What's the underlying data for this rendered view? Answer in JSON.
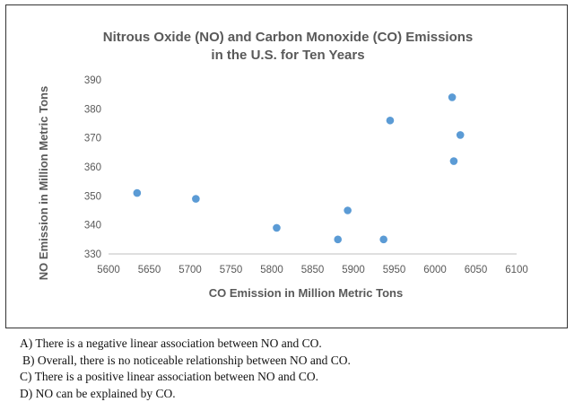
{
  "chart_data": {
    "type": "scatter",
    "title": [
      "Nitrous Oxide (NO) and Carbon Monoxide (CO) Emissions",
      "in the U.S. for Ten Years"
    ],
    "xlabel": "CO Emission in Million Metric Tons",
    "ylabel": "NO Emission in Million Metric Tons",
    "xlim": [
      5600,
      6100
    ],
    "ylim": [
      330,
      390
    ],
    "xticks": [
      "5600",
      "5650",
      "5700",
      "5750",
      "5800",
      "5850",
      "5900",
      "5950",
      "6000",
      "6050",
      "6100"
    ],
    "yticks": [
      "330",
      "340",
      "350",
      "360",
      "370",
      "380",
      "390"
    ],
    "grid": false,
    "point_color": "#5b9bd5",
    "points": [
      {
        "x": 5635,
        "y": 351
      },
      {
        "x": 5707,
        "y": 349
      },
      {
        "x": 5806,
        "y": 339
      },
      {
        "x": 5881,
        "y": 335
      },
      {
        "x": 5893,
        "y": 345
      },
      {
        "x": 5937,
        "y": 335
      },
      {
        "x": 5945,
        "y": 376
      },
      {
        "x": 6021,
        "y": 384
      },
      {
        "x": 6023,
        "y": 362
      },
      {
        "x": 6031,
        "y": 371
      }
    ]
  },
  "choices": [
    "A) There is a negative linear association between NO and CO.",
    "B) Overall, there is no noticeable relationship between NO and CO.",
    "C) There is a positive linear association between NO and CO.",
    "D) NO can be explained by CO."
  ]
}
